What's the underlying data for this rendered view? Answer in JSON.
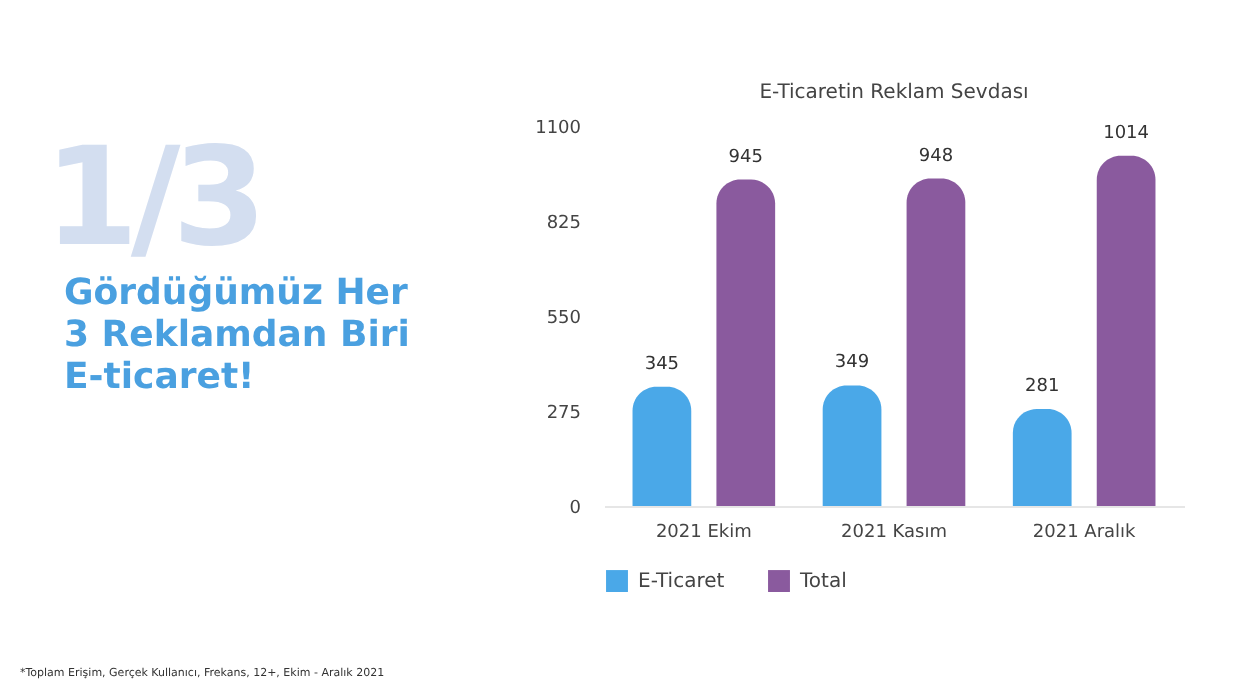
{
  "chart_data": {
    "type": "bar",
    "title": "E-Ticaretin Reklam Sevdası",
    "categories": [
      "2021 Ekim",
      "2021 Kasım",
      "2021 Aralık"
    ],
    "series": [
      {
        "name": "E-Ticaret",
        "color": "#4aa8e8",
        "values": [
          345,
          349,
          281
        ]
      },
      {
        "name": "Total",
        "color": "#8a5a9e",
        "values": [
          945,
          948,
          1014
        ]
      }
    ],
    "ylim": [
      0,
      1100
    ],
    "yticks": [
      0,
      275,
      550,
      825,
      1100
    ],
    "grid": false,
    "legend": "bottom",
    "data_labels": true,
    "annotations": [
      "1/3",
      "Gördüğümüz Her 3 Reklamdan Biri E-ticaret!",
      "*Toplam Erişim, Gerçek Kullanıcı, Frekans, 12+, Ekim - Aralık 2021"
    ]
  }
}
